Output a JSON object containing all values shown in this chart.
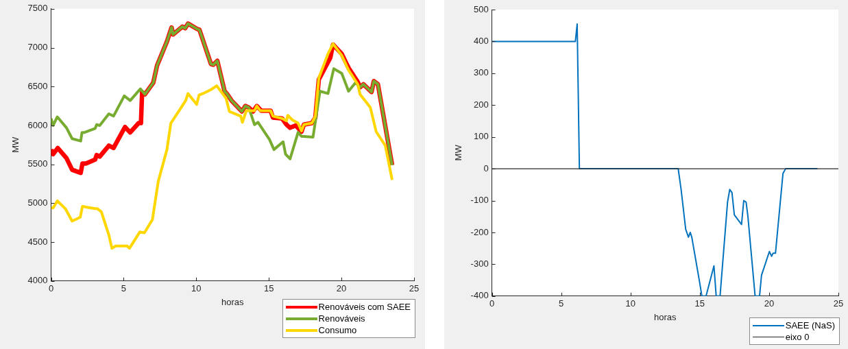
{
  "chart_data": [
    {
      "type": "line",
      "xlabel": "horas",
      "ylabel": "MW",
      "xlim": [
        0,
        25
      ],
      "xticks": [
        0,
        5,
        10,
        15,
        20,
        25
      ],
      "ylim": [
        4000,
        7500
      ],
      "yticks": [
        4000,
        4500,
        5000,
        5500,
        6000,
        6500,
        7000,
        7500
      ],
      "grid": false,
      "legend": "bottom right",
      "marker": "none",
      "line_style": "solid",
      "series": [
        {
          "name": "Renováveis com SAEE",
          "color": "#ff0000",
          "x": [
            0,
            0.14,
            0.46,
            1.06,
            1.45,
            2.04,
            2.16,
            2.4,
            3.03,
            3.14,
            3.35,
            3.98,
            4.3,
            5.09,
            5.45,
            6.03,
            6.19,
            6.27,
            6.46,
            7.04,
            7.3,
            7.98,
            8.3,
            8.4,
            9.04,
            9.24,
            9.43,
            10.06,
            10.22,
            11.01,
            11.17,
            11.45,
            11.95,
            12.1,
            12.43,
            13.14,
            13.38,
            13.62,
            13.91,
            14.17,
            14.48,
            15.12,
            15.28,
            15.91,
            16.22,
            16.46,
            16.85,
            17.25,
            17.41,
            17.96,
            18.2,
            18.44,
            19.23,
            19.42,
            20.02,
            20.49,
            21.12,
            21.28,
            21.51,
            22.07,
            22.23,
            22.51,
            23.49
          ],
          "values": [
            5690,
            5630,
            5710,
            5580,
            5430,
            5390,
            5510,
            5510,
            5560,
            5620,
            5600,
            5740,
            5710,
            5980,
            5910,
            6030,
            6030,
            6430,
            6400,
            6550,
            6770,
            7080,
            7260,
            7170,
            7270,
            7250,
            7310,
            7240,
            7230,
            6790,
            6780,
            6830,
            6440,
            6410,
            6320,
            6180,
            6250,
            6230,
            6180,
            6250,
            6190,
            6190,
            6100,
            6090,
            6010,
            5970,
            6000,
            5920,
            6010,
            6030,
            6100,
            6590,
            6870,
            7040,
            6920,
            6740,
            6560,
            6490,
            6530,
            6430,
            6570,
            6530,
            5490
          ]
        },
        {
          "name": "Renováveis",
          "color": "#77ac30",
          "x": [
            0,
            0.14,
            0.43,
            1.06,
            1.45,
            2.04,
            2.13,
            2.3,
            3.03,
            3.14,
            3.35,
            3.98,
            4.3,
            5.04,
            5.45,
            6.15,
            6.46,
            7.04,
            7.3,
            7.98,
            8.3,
            8.4,
            9.04,
            9.24,
            9.43,
            10.06,
            10.22,
            11.01,
            11.17,
            11.45,
            11.95,
            12.1,
            12.43,
            13.14,
            13.38,
            13.62,
            14.01,
            14.25,
            15.04,
            15.35,
            15.98,
            16.15,
            16.46,
            17.01,
            17.25,
            18.04,
            18.52,
            19.07,
            19.47,
            20.02,
            20.49,
            20.97,
            21.28,
            21.51,
            22.07,
            22.23,
            22.51,
            23.49
          ],
          "values": [
            6090,
            6000,
            6110,
            5970,
            5830,
            5800,
            5910,
            5910,
            5960,
            6010,
            6000,
            6150,
            6120,
            6380,
            6320,
            6470,
            6400,
            6550,
            6770,
            7080,
            7260,
            7170,
            7270,
            7250,
            7310,
            7240,
            7230,
            6790,
            6780,
            6830,
            6440,
            6410,
            6320,
            6180,
            6250,
            6230,
            6010,
            6040,
            5820,
            5690,
            5790,
            5630,
            5570,
            5910,
            5860,
            5850,
            6440,
            6410,
            6730,
            6670,
            6440,
            6550,
            6490,
            6530,
            6430,
            6570,
            6530,
            5490
          ]
        },
        {
          "name": "Consumo",
          "color": "#ffd700",
          "x": [
            0,
            0.14,
            0.43,
            0.98,
            1.45,
            2.01,
            2.16,
            2.4,
            3.03,
            3.19,
            3.46,
            3.98,
            4.19,
            4.45,
            5.09,
            5.24,
            5.4,
            6.11,
            6.43,
            6.98,
            7.38,
            7.98,
            8.25,
            8.96,
            9.27,
            9.43,
            10.03,
            10.19,
            10.46,
            11.01,
            11.41,
            12.05,
            12.28,
            13.06,
            13.18,
            13.45,
            14.01,
            14.17,
            14.41,
            15.12,
            15.28,
            15.91,
            16.22,
            16.3,
            16.62,
            17.01,
            17.25,
            17.41,
            17.96,
            18.2,
            18.44,
            19.07,
            19.42,
            20.02,
            20.49,
            21.12,
            21.28,
            21.99,
            22.39,
            23.02,
            23.49
          ],
          "values": [
            4940,
            4940,
            5030,
            4930,
            4770,
            4820,
            4960,
            4950,
            4930,
            4930,
            4890,
            4590,
            4420,
            4450,
            4450,
            4450,
            4420,
            4630,
            4620,
            4790,
            5280,
            5690,
            6030,
            6230,
            6320,
            6410,
            6270,
            6390,
            6410,
            6460,
            6510,
            6350,
            6180,
            6120,
            6040,
            6190,
            6190,
            6250,
            6190,
            6190,
            6120,
            6090,
            6060,
            6130,
            6070,
            6030,
            5930,
            6010,
            6030,
            6120,
            6610,
            6920,
            7050,
            6900,
            6710,
            6530,
            6400,
            6230,
            5920,
            5740,
            5300
          ]
        }
      ]
    },
    {
      "type": "line",
      "xlabel": "horas",
      "ylabel": "MW",
      "xlim": [
        0,
        25
      ],
      "xticks": [
        0,
        5,
        10,
        15,
        20,
        25
      ],
      "ylim": [
        -400,
        500
      ],
      "yticks": [
        -400,
        -300,
        -200,
        -100,
        0,
        100,
        200,
        300,
        400,
        500
      ],
      "grid": false,
      "legend": "bottom right",
      "marker": "none",
      "line_style": "solid",
      "series": [
        {
          "name": "SAEE (NaS)",
          "color": "#0072bd",
          "x": [
            0,
            6.02,
            6.15,
            6.31,
            13.44,
            13.65,
            13.98,
            14.18,
            14.31,
            14.42,
            14.96,
            15.15,
            15.45,
            16.02,
            16.18,
            16.46,
            17,
            17.16,
            17.32,
            17.49,
            18.01,
            18.17,
            18.34,
            18.47,
            18.99,
            19.31,
            19.45,
            20.02,
            20.18,
            20.29,
            20.46,
            21,
            21.19,
            23.49
          ],
          "values": [
            400,
            400,
            455,
            0,
            0,
            -65,
            -190,
            -215,
            -200,
            -215,
            -350,
            -400,
            -400,
            -305,
            -400,
            -400,
            -105,
            -65,
            -75,
            -145,
            -175,
            -100,
            -105,
            -150,
            -400,
            -400,
            -335,
            -260,
            -275,
            -265,
            -265,
            -15,
            0,
            0
          ]
        },
        {
          "name": "eixo 0",
          "color": "#262626",
          "x": [
            0,
            25
          ],
          "values": [
            0,
            0
          ]
        }
      ]
    }
  ]
}
